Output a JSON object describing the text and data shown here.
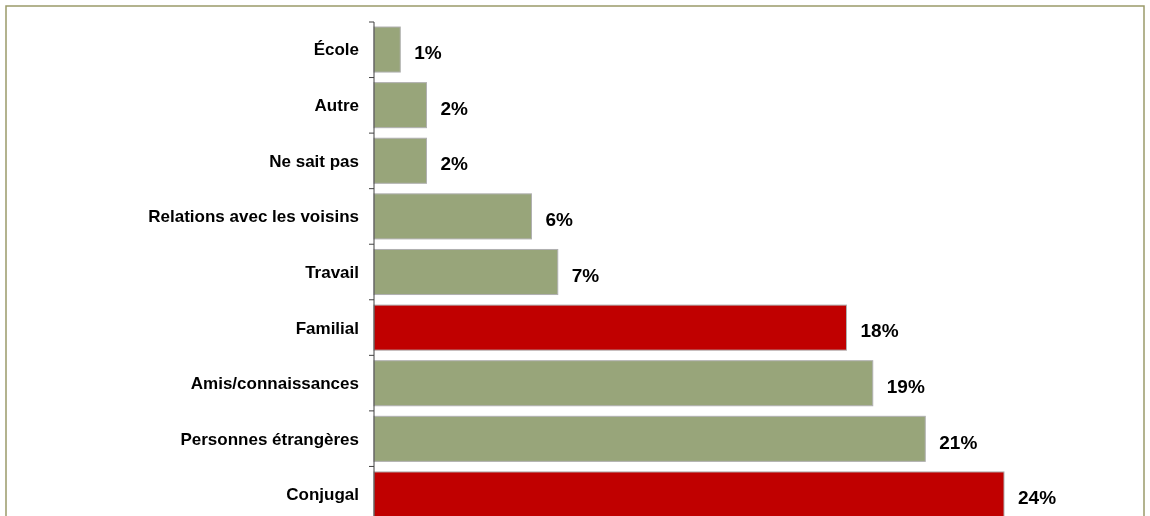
{
  "chart_data": {
    "type": "bar",
    "orientation": "horizontal",
    "categories": [
      "École",
      "Autre",
      "Ne sait pas",
      "Relations avec les voisins",
      "Travail",
      "Familial",
      "Amis/connaissances",
      "Personnes étrangères",
      "Conjugal"
    ],
    "values": [
      1,
      2,
      2,
      6,
      7,
      18,
      19,
      21,
      24
    ],
    "colors": [
      "#98a57a",
      "#98a57a",
      "#98a57a",
      "#98a57a",
      "#98a57a",
      "#c00000",
      "#98a57a",
      "#98a57a",
      "#c00000"
    ],
    "value_labels": [
      "1%",
      "2%",
      "2%",
      "6%",
      "7%",
      "18%",
      "19%",
      "21%",
      "24%"
    ]
  }
}
